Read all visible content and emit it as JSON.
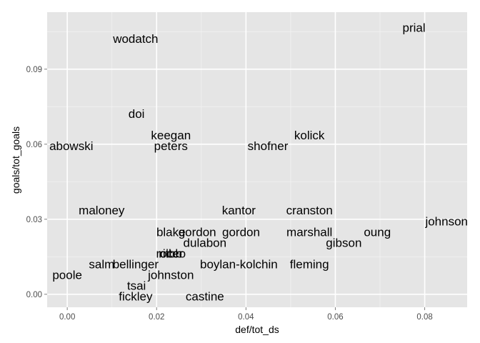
{
  "chart_data": {
    "type": "scatter",
    "mark": "text",
    "xlabel": "def/tot_ds",
    "ylabel": "goals/tot_goals",
    "xlim": [
      -0.0045,
      0.0895
    ],
    "ylim": [
      -0.0052,
      0.1128
    ],
    "xticks": [
      {
        "value": 0.0,
        "label": "0.00"
      },
      {
        "value": 0.02,
        "label": "0.02"
      },
      {
        "value": 0.04,
        "label": "0.04"
      },
      {
        "value": 0.06,
        "label": "0.06"
      },
      {
        "value": 0.08,
        "label": "0.08"
      }
    ],
    "yticks": [
      {
        "value": 0.0,
        "label": "0.00"
      },
      {
        "value": 0.03,
        "label": "0.03"
      },
      {
        "value": 0.06,
        "label": "0.06"
      },
      {
        "value": 0.09,
        "label": "0.09"
      }
    ],
    "grid": true,
    "colors": {
      "panel": "#e5e5e5",
      "grid_major": "#ffffff",
      "grid_minor": "#f2f2f2",
      "text": "#000000",
      "tick_text": "#4d4d4d"
    },
    "points": [
      {
        "label": "prial",
        "x": 0.0776,
        "y": 0.1066
      },
      {
        "label": "wodatch",
        "x": 0.0153,
        "y": 0.1023
      },
      {
        "label": "doi",
        "x": 0.0155,
        "y": 0.0723
      },
      {
        "label": "keegan",
        "x": 0.0232,
        "y": 0.0636
      },
      {
        "label": "kolick",
        "x": 0.0542,
        "y": 0.0636
      },
      {
        "label": "abowski",
        "x": 0.0009,
        "y": 0.0594
      },
      {
        "label": "peters",
        "x": 0.0232,
        "y": 0.0594
      },
      {
        "label": "shofner",
        "x": 0.0449,
        "y": 0.0594
      },
      {
        "label": "maloney",
        "x": 0.0077,
        "y": 0.0336
      },
      {
        "label": "kantor",
        "x": 0.0384,
        "y": 0.0336
      },
      {
        "label": "cranston",
        "x": 0.0542,
        "y": 0.0336
      },
      {
        "label": "johnson",
        "x": 0.0849,
        "y": 0.0293
      },
      {
        "label": "blake",
        "x": 0.0232,
        "y": 0.025
      },
      {
        "label": "gordon",
        "x": 0.0291,
        "y": 0.025
      },
      {
        "label": "gordon",
        "x": 0.0389,
        "y": 0.025
      },
      {
        "label": "marshall",
        "x": 0.0542,
        "y": 0.025
      },
      {
        "label": "oung",
        "x": 0.0694,
        "y": 0.025
      },
      {
        "label": "dulabon",
        "x": 0.0308,
        "y": 0.0207
      },
      {
        "label": "gibson",
        "x": 0.0619,
        "y": 0.0207
      },
      {
        "label": "rocco",
        "x": 0.0232,
        "y": 0.0164
      },
      {
        "label": "cibb",
        "x": 0.0232,
        "y": 0.0164
      },
      {
        "label": "ritter",
        "x": 0.0232,
        "y": 0.0164
      },
      {
        "label": "salm",
        "x": 0.0077,
        "y": 0.0121
      },
      {
        "label": "bellinger",
        "x": 0.0153,
        "y": 0.0121
      },
      {
        "label": "boylan-kolchin",
        "x": 0.0384,
        "y": 0.0121
      },
      {
        "label": "fleming",
        "x": 0.0542,
        "y": 0.0121
      },
      {
        "label": "poole",
        "x": 0.0,
        "y": 0.0078
      },
      {
        "label": "johnston",
        "x": 0.0232,
        "y": 0.0078
      },
      {
        "label": "tsai",
        "x": 0.0155,
        "y": 0.0035
      },
      {
        "label": "fickley",
        "x": 0.0153,
        "y": -0.0008
      },
      {
        "label": "castine",
        "x": 0.0308,
        "y": -0.0008
      }
    ]
  }
}
